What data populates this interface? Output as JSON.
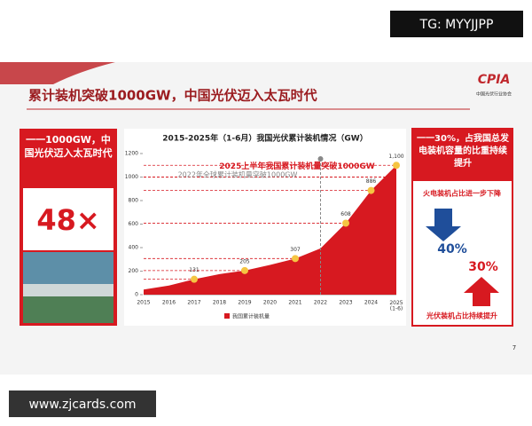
{
  "chart_data": {
    "type": "area",
    "title": "2015-2025年（1-6月）我国光伏累计装机情况（GW）",
    "categories": [
      "2015",
      "2016",
      "2017",
      "2018",
      "2019",
      "2020",
      "2021",
      "2022",
      "2023",
      "2024",
      "2025\n(1-6)"
    ],
    "series": [
      {
        "name": "我国累计装机量",
        "color": "#d71920",
        "values": [
          43,
          77,
          131,
          175,
          205,
          253,
          307,
          393,
          608,
          886,
          1100
        ],
        "value_labels": [
          null,
          null,
          "131",
          null,
          "205",
          null,
          "307",
          null,
          "608",
          "886",
          "1,100"
        ]
      }
    ],
    "ylim": [
      0,
      1200
    ],
    "yticks": [
      0,
      200,
      400,
      600,
      800,
      1000,
      1200
    ],
    "annotations": [
      {
        "text": "2025上半年我国累计装机量突破1000GW",
        "value": 1000,
        "color": "#d71920"
      },
      {
        "text": "2022年全球累计装机量突破1000GW",
        "category": 7,
        "color": "#888888"
      }
    ]
  },
  "slide": {
    "title": "累计装机突破1000GW，中国光伏迈入太瓦时代",
    "logo": "CPIA",
    "logo_sub": "中国光伏行业协会",
    "left": {
      "heading": "一一1000GW，中国光伏迈入太瓦时代",
      "big": "48×"
    },
    "right": {
      "heading": "一一30%，占我国总发电装机容量的比重持续提升",
      "down_note": "火电装机占比进一步下降",
      "down_value": "40%",
      "up_value": "30%",
      "up_note": "光伏装机占比持续提升"
    },
    "page": "7"
  },
  "watermarks": {
    "top": "TG: MYYJJPP",
    "bottom": "www.zjcards.com"
  }
}
